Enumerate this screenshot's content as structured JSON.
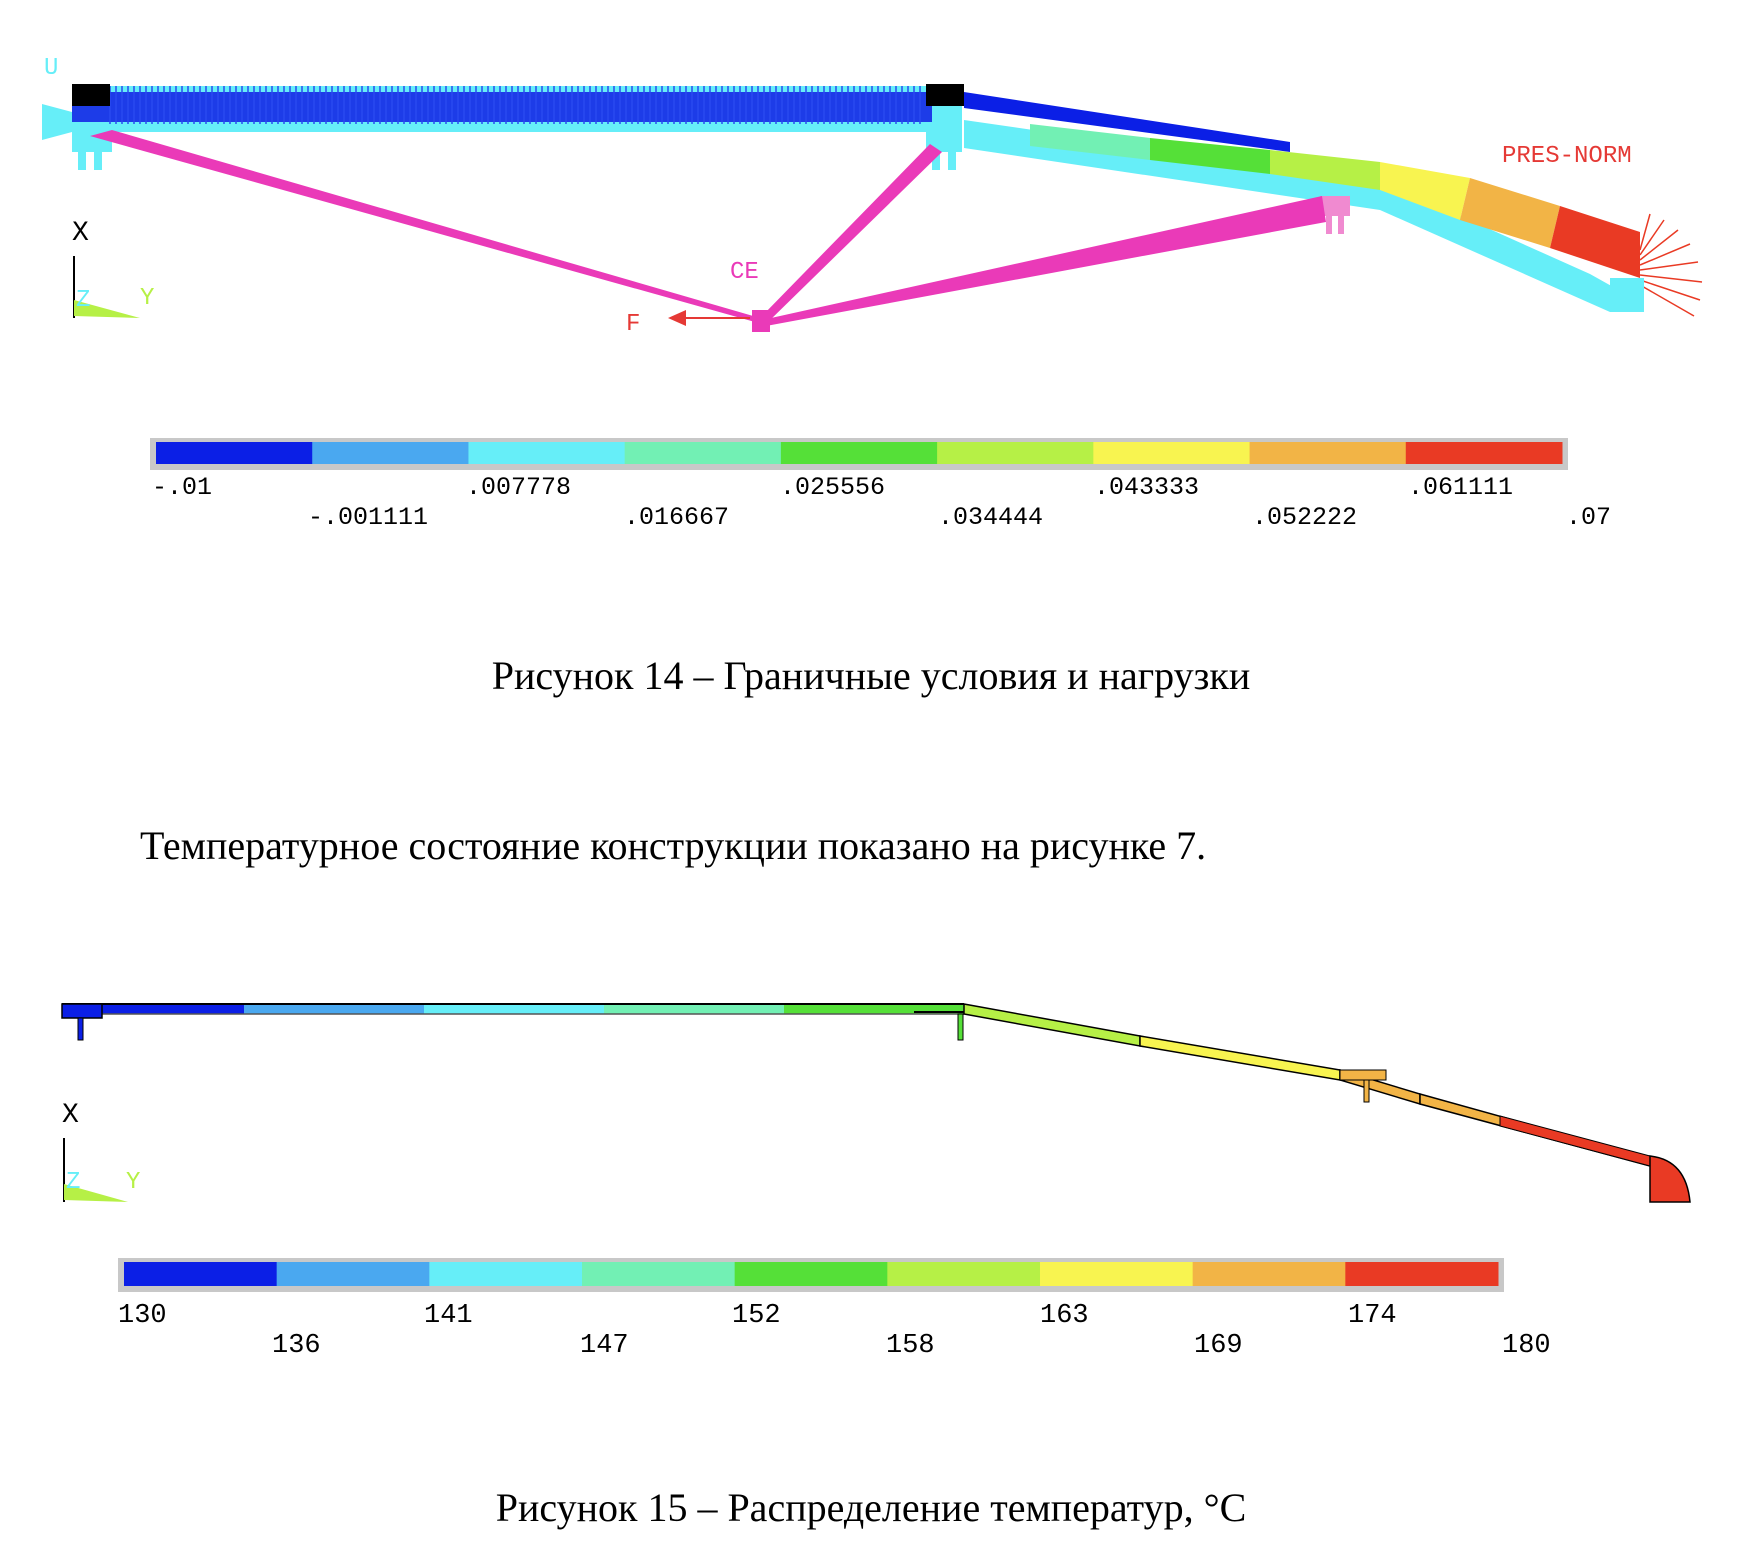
{
  "figure14": {
    "labels": {
      "u": "U",
      "x": "X",
      "z": "Z",
      "y": "Y",
      "ce": "CE",
      "f": "F",
      "pres": "PRES-NORM"
    },
    "legend": {
      "colors": [
        "#0b1fe6",
        "#4aa8f0",
        "#66eef8",
        "#72f0b4",
        "#55e038",
        "#b6f046",
        "#f8f450",
        "#f2b446",
        "#e93a24"
      ],
      "top_labels": [
        "-.01",
        ".007778",
        ".025556",
        ".043333",
        ".061111"
      ],
      "bottom_labels": [
        "-.001111",
        ".016667",
        ".034444",
        ".052222",
        ".07"
      ]
    },
    "caption": "Рисунок 14 – Граничные условия и нагрузки"
  },
  "paragraph": "Температурное состояние конструкции показано на рисунке 7.",
  "figure15": {
    "labels": {
      "x": "X",
      "z": "Z",
      "y": "Y"
    },
    "legend": {
      "colors": [
        "#0b1fe6",
        "#4aa8f0",
        "#66eef8",
        "#72f0b4",
        "#55e038",
        "#b6f046",
        "#f8f450",
        "#f2b446",
        "#e93a24"
      ],
      "top_labels": [
        "130",
        "141",
        "152",
        "163",
        "174"
      ],
      "bottom_labels": [
        "136",
        "147",
        "158",
        "169",
        "180"
      ]
    },
    "caption": "Рисунок 15 – Распределение температур, °C"
  }
}
